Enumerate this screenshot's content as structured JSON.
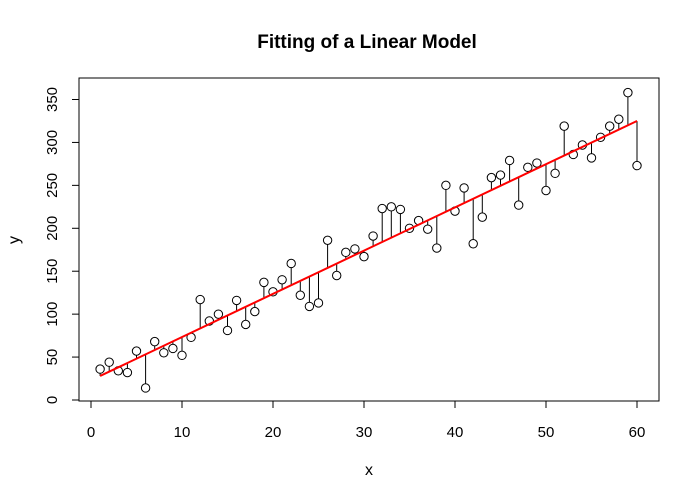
{
  "chart_data": {
    "type": "scatter",
    "title": "Fitting of a Linear Model",
    "xlabel": "x",
    "ylabel": "y",
    "xlim": [
      0,
      63
    ],
    "ylim": [
      0,
      370
    ],
    "xticks": [
      0,
      10,
      20,
      30,
      40,
      50,
      60
    ],
    "yticks": [
      0,
      50,
      100,
      150,
      200,
      250,
      300,
      350
    ],
    "x": [
      1,
      2,
      3,
      4,
      5,
      6,
      7,
      8,
      9,
      10,
      11,
      12,
      13,
      14,
      15,
      16,
      17,
      18,
      19,
      20,
      21,
      22,
      23,
      24,
      25,
      26,
      27,
      28,
      29,
      30,
      31,
      32,
      33,
      34,
      35,
      36,
      37,
      38,
      39,
      40,
      41,
      42,
      43,
      44,
      45,
      46,
      47,
      48,
      49,
      50,
      51,
      52,
      53,
      54,
      55,
      56,
      57,
      58,
      59,
      60
    ],
    "y": [
      36,
      44,
      34,
      32,
      57,
      14,
      68,
      55,
      60,
      52,
      73,
      117,
      92,
      100,
      81,
      116,
      88,
      103,
      137,
      126,
      140,
      159,
      122,
      109,
      113,
      186,
      145,
      172,
      176,
      167,
      191,
      223,
      225,
      222,
      200,
      209,
      199,
      177,
      250,
      220,
      247,
      182,
      213,
      259,
      262,
      279,
      227,
      271,
      276,
      244,
      264,
      319,
      286,
      297,
      282,
      306,
      319,
      327,
      358,
      273
    ],
    "fit_line": {
      "color": "#ff0000",
      "x": [
        1,
        60
      ],
      "y": [
        28,
        325
      ]
    },
    "residual_segments": true,
    "grid": false,
    "point_marker": "open-circle",
    "point_color": "#000000"
  }
}
